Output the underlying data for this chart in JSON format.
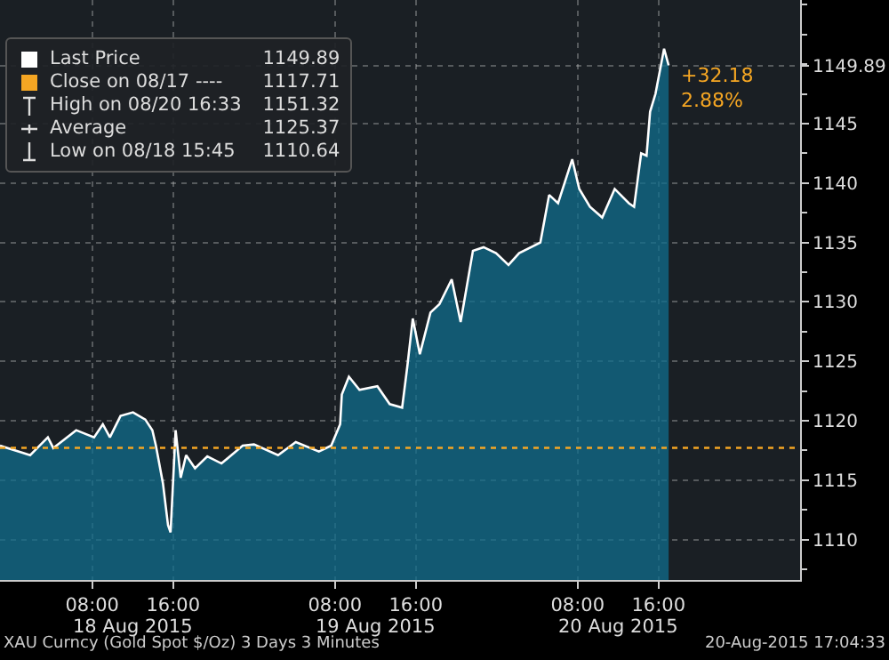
{
  "chart_data": {
    "type": "area",
    "x": [
      "2015-08-17T22:53",
      "2015-08-18T01:52",
      "2015-08-18T03:37",
      "2015-08-18T04:09",
      "2015-08-18T06:25",
      "2015-08-18T08:11",
      "2015-08-18T09:03",
      "2015-08-18T09:45",
      "2015-08-18T10:48",
      "2015-08-18T12:02",
      "2015-08-18T13:15",
      "2015-08-18T13:57",
      "2015-08-18T14:18",
      "2015-08-18T15:00",
      "2015-08-18T15:30",
      "2015-08-18T15:45",
      "2015-08-18T16:15",
      "2015-08-18T16:45",
      "2015-08-18T17:17",
      "2015-08-18T18:10",
      "2015-08-18T19:23",
      "2015-08-18T20:47",
      "2015-08-18T22:53",
      "2015-08-19T00:00",
      "2015-08-19T02:23",
      "2015-08-19T04:08",
      "2015-08-19T06:25",
      "2015-08-19T07:38",
      "2015-08-19T08:31",
      "2015-08-19T08:41",
      "2015-08-19T09:23",
      "2015-08-19T10:26",
      "2015-08-19T12:12",
      "2015-08-19T13:25",
      "2015-08-19T14:39",
      "2015-08-19T15:10",
      "2015-08-19T15:42",
      "2015-08-19T16:24",
      "2015-08-19T17:27",
      "2015-08-19T18:20",
      "2015-08-19T19:33",
      "2015-08-19T20:26",
      "2015-08-19T21:39",
      "2015-08-19T22:42",
      "2015-08-19T23:56",
      "2015-08-20T01:10",
      "2015-08-20T02:13",
      "2015-08-20T04:19",
      "2015-08-20T05:11",
      "2015-08-20T06:04",
      "2015-08-20T07:28",
      "2015-08-20T08:10",
      "2015-08-20T09:13",
      "2015-08-20T10:26",
      "2015-08-20T11:40",
      "2015-08-20T13:04",
      "2015-08-20T13:35",
      "2015-08-20T14:17",
      "2015-08-20T14:49",
      "2015-08-20T15:10",
      "2015-08-20T15:42",
      "2015-08-20T16:33",
      "2015-08-20T17:00"
    ],
    "series": [
      {
        "color": "#ffffff",
        "values": [
          1117.9,
          1117.1,
          1118.6,
          1117.7,
          1119.2,
          1118.6,
          1119.7,
          1118.6,
          1120.4,
          1120.7,
          1120.1,
          1119.2,
          1117.9,
          1114.7,
          1111.2,
          1110.6,
          1119.2,
          1115.2,
          1117.1,
          1116.0,
          1117.0,
          1116.4,
          1117.9,
          1118.0,
          1117.1,
          1118.2,
          1117.4,
          1117.9,
          1119.7,
          1122.2,
          1123.7,
          1122.6,
          1122.9,
          1121.4,
          1121.1,
          1124.6,
          1128.6,
          1125.6,
          1129.1,
          1129.8,
          1131.9,
          1128.3,
          1134.3,
          1134.6,
          1134.1,
          1133.1,
          1134.1,
          1135.0,
          1139.0,
          1138.3,
          1142.0,
          1139.5,
          1138.0,
          1137.1,
          1139.5,
          1138.3,
          1138.0,
          1142.5,
          1142.3,
          1146.0,
          1147.5,
          1151.3,
          1149.9
        ]
      }
    ],
    "xlim": [
      "2015-08-17T22:53",
      "2015-08-21T06:00"
    ],
    "xticks": [
      {
        "value": "2015-08-18T08:00",
        "label": "08:00"
      },
      {
        "value": "2015-08-18T16:00",
        "label": "16:00"
      },
      {
        "value": "2015-08-19T08:00",
        "label": "08:00"
      },
      {
        "value": "2015-08-19T16:00",
        "label": "16:00"
      },
      {
        "value": "2015-08-20T08:00",
        "label": "08:00"
      },
      {
        "value": "2015-08-20T16:00",
        "label": "16:00"
      }
    ],
    "x2lim": [
      "2015-08-17T22:53",
      "2015-08-21T06:00"
    ],
    "x2ticks": [
      {
        "value": "2015-08-18T12:00",
        "label": "18 Aug 2015"
      },
      {
        "value": "2015-08-19T12:00",
        "label": "19 Aug 2015"
      },
      {
        "value": "2015-08-20T12:00",
        "label": "20 Aug 2015"
      }
    ],
    "ylim": [
      1106.6,
      1155.4
    ],
    "yticks": [
      1110,
      1115,
      1120,
      1125,
      1130,
      1135,
      1140,
      1145,
      1149.89
    ],
    "grid": true,
    "ref_lines": [
      {
        "axis": "y",
        "value": 1117.71,
        "color": "#f5a623",
        "line_style": "dotted"
      }
    ],
    "annotations": [
      "Last Price",
      "1149.89",
      "Close on 08/17 ----",
      "1117.71",
      "High on 08/20 16:33",
      "1151.32",
      "Average",
      "1125.37",
      "Low on 08/18 15:45",
      "1110.64",
      "+32.18",
      "2.88%",
      "XAU Curncy (Gold Spot  $/Oz) 3 Days 3 Minutes",
      "20-Aug-2015 17:04:33"
    ]
  }
}
